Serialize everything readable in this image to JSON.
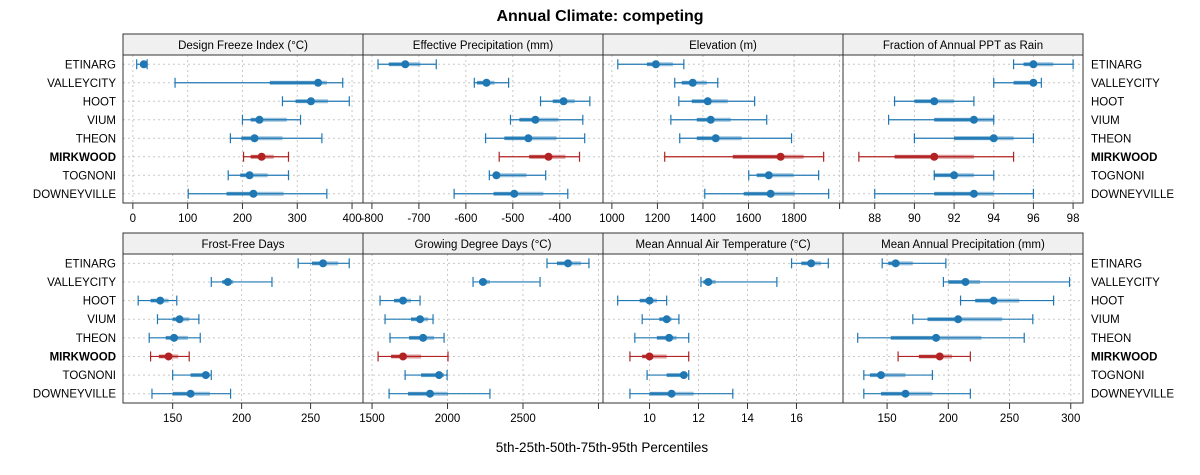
{
  "chart_data": {
    "type": "dot-interval",
    "title": "Annual Climate: competing",
    "xlabel": "5th-25th-50th-75th-95th Percentiles",
    "ylabel": "",
    "grid": true,
    "colors": {
      "default": "#1f78b4",
      "highlight": "#b22222",
      "strip_bg": "#f0f0f0",
      "grid": "#c8c8c8"
    },
    "categories": [
      "ETINARG",
      "VALLEYCITY",
      "HOOT",
      "VIUM",
      "THEON",
      "MIRKWOOD",
      "TOGNONI",
      "DOWNEYVILLE"
    ],
    "highlight_category": "MIRKWOOD",
    "quantiles": [
      "p5",
      "p25",
      "p50",
      "p75",
      "p95"
    ],
    "panels": [
      {
        "title": "Design Freeze Index (°C)",
        "xlim": [
          -18,
          420
        ],
        "ticks": [
          0,
          100,
          200,
          300,
          400
        ],
        "tick_labels": [
          "0",
          "100",
          "200",
          "300",
          "400"
        ],
        "values": {
          "ETINARG": [
            7,
            13,
            20,
            22,
            26
          ],
          "VALLEYCITY": [
            77,
            250,
            338,
            354,
            383
          ],
          "HOOT": [
            273,
            297,
            325,
            356,
            395
          ],
          "VIUM": [
            200,
            215,
            231,
            281,
            306
          ],
          "THEON": [
            178,
            198,
            222,
            273,
            345
          ],
          "MIRKWOOD": [
            202,
            215,
            235,
            257,
            284
          ],
          "TOGNONI": [
            174,
            196,
            213,
            246,
            284
          ],
          "DOWNEYVILLE": [
            101,
            171,
            220,
            275,
            354
          ]
        }
      },
      {
        "title": "Effective Precipitation (mm)",
        "xlim": [
          -819,
          -308
        ],
        "ticks": [
          -800,
          -700,
          -600,
          -500,
          -400
        ],
        "tick_labels": [
          "-800",
          "-700",
          "-600",
          "-500",
          "-400"
        ],
        "values": {
          "ETINARG": [
            -787,
            -764,
            -729,
            -697,
            -663
          ],
          "VALLEYCITY": [
            -582,
            -576,
            -556,
            -539,
            -509
          ],
          "HOOT": [
            -441,
            -415,
            -392,
            -368,
            -336
          ],
          "VIUM": [
            -505,
            -486,
            -452,
            -403,
            -351
          ],
          "THEON": [
            -558,
            -518,
            -467,
            -407,
            -347
          ],
          "MIRKWOOD": [
            -529,
            -465,
            -424,
            -388,
            -358
          ],
          "TOGNONI": [
            -550,
            -541,
            -535,
            -471,
            -430
          ],
          "DOWNEYVILLE": [
            -625,
            -541,
            -497,
            -435,
            -383
          ]
        }
      },
      {
        "title": "Elevation (m)",
        "xlim": [
          961,
          2015
        ],
        "ticks": [
          1000,
          1200,
          1400,
          1600,
          1800,
          2000
        ],
        "tick_labels": [
          "1000",
          "1200",
          "1400",
          "1600",
          "1800",
          ""
        ],
        "values": {
          "ETINARG": [
            1026,
            1154,
            1193,
            1268,
            1316
          ],
          "VALLEYCITY": [
            1276,
            1307,
            1355,
            1417,
            1465
          ],
          "HOOT": [
            1294,
            1351,
            1421,
            1509,
            1627
          ],
          "VIUM": [
            1259,
            1373,
            1434,
            1522,
            1680
          ],
          "THEON": [
            1298,
            1373,
            1456,
            1570,
            1789
          ],
          "MIRKWOOD": [
            1232,
            1531,
            1741,
            1842,
            1930
          ],
          "TOGNONI": [
            1601,
            1636,
            1689,
            1798,
            1908
          ],
          "DOWNEYVILLE": [
            1408,
            1579,
            1697,
            1803,
            1952
          ]
        }
      },
      {
        "title": "Fraction of Annual PPT as Rain",
        "xlim": [
          86.4,
          98.5
        ],
        "ticks": [
          88,
          90,
          92,
          94,
          96,
          98
        ],
        "tick_labels": [
          "88",
          "90",
          "92",
          "94",
          "96",
          "98"
        ],
        "values": {
          "ETINARG": [
            95,
            95.5,
            96,
            97,
            98
          ],
          "VALLEYCITY": [
            94,
            95,
            96,
            96,
            96.4
          ],
          "HOOT": [
            89,
            90,
            91,
            92,
            93
          ],
          "VIUM": [
            88.7,
            91,
            93,
            94,
            94
          ],
          "THEON": [
            90,
            92,
            94,
            95,
            96
          ],
          "MIRKWOOD": [
            87.2,
            89,
            91,
            93,
            95
          ],
          "TOGNONI": [
            91,
            91,
            92,
            93,
            94
          ],
          "DOWNEYVILLE": [
            88,
            91,
            93,
            94,
            96
          ]
        }
      },
      {
        "title": "Frost-Free Days",
        "xlim": [
          114,
          288
        ],
        "ticks": [
          150,
          200,
          250
        ],
        "tick_labels": [
          "150",
          "200",
          "250"
        ],
        "values": {
          "ETINARG": [
            241,
            251,
            259,
            270,
            278
          ],
          "VALLEYCITY": [
            178,
            186,
            190,
            194,
            222
          ],
          "HOOT": [
            125,
            134,
            141,
            147,
            153
          ],
          "VIUM": [
            139,
            150,
            155,
            162,
            169
          ],
          "THEON": [
            133,
            145,
            151,
            161,
            170
          ],
          "MIRKWOOD": [
            134,
            140,
            147,
            154,
            162
          ],
          "TOGNONI": [
            150,
            163,
            174,
            177,
            178
          ],
          "DOWNEYVILLE": [
            135,
            150,
            163,
            177,
            192
          ]
        }
      },
      {
        "title": "Growing Degree Days (°C)",
        "xlim": [
          1440,
          3030
        ],
        "ticks": [
          1500,
          2000,
          2500,
          3000
        ],
        "tick_labels": [
          "1500",
          "2000",
          "2500",
          ""
        ],
        "values": {
          "ETINARG": [
            2659,
            2725,
            2798,
            2884,
            2937
          ],
          "VALLEYCITY": [
            2169,
            2209,
            2235,
            2281,
            2613
          ],
          "HOOT": [
            1553,
            1646,
            1705,
            1758,
            1818
          ],
          "VIUM": [
            1586,
            1758,
            1818,
            1871,
            1904
          ],
          "THEON": [
            1619,
            1745,
            1838,
            1911,
            1977
          ],
          "MIRKWOOD": [
            1540,
            1626,
            1705,
            1825,
            2003
          ],
          "TOGNONI": [
            1719,
            1825,
            1944,
            1977,
            1997
          ],
          "DOWNEYVILLE": [
            1613,
            1738,
            1884,
            2003,
            2281
          ]
        }
      },
      {
        "title": "Mean Annual Air Temperature (°C)",
        "xlim": [
          8.1,
          17.9
        ],
        "ticks": [
          10,
          12,
          14,
          16
        ],
        "tick_labels": [
          "10",
          "12",
          "14",
          "16"
        ],
        "values": {
          "ETINARG": [
            15.8,
            16.2,
            16.6,
            17.0,
            17.3
          ],
          "VALLEYCITY": [
            12.1,
            12.2,
            12.4,
            12.7,
            15.2
          ],
          "HOOT": [
            8.7,
            9.6,
            10.0,
            10.3,
            10.7
          ],
          "VIUM": [
            9.7,
            10.4,
            10.7,
            10.9,
            11.2
          ],
          "THEON": [
            9.4,
            10.3,
            10.8,
            11.1,
            11.6
          ],
          "MIRKWOOD": [
            9.2,
            9.7,
            10.0,
            10.7,
            11.6
          ],
          "TOGNONI": [
            9.9,
            10.7,
            11.4,
            11.5,
            11.6
          ],
          "DOWNEYVILLE": [
            9.2,
            10.0,
            10.9,
            11.8,
            13.4
          ]
        }
      },
      {
        "title": "Mean Annual Precipitation (mm)",
        "xlim": [
          114,
          310
        ],
        "ticks": [
          150,
          200,
          250,
          300
        ],
        "tick_labels": [
          "150",
          "200",
          "250",
          "300"
        ],
        "values": {
          "ETINARG": [
            146,
            151,
            157,
            171,
            198
          ],
          "VALLEYCITY": [
            196,
            200,
            214,
            226,
            299
          ],
          "HOOT": [
            210,
            222,
            237,
            258,
            286
          ],
          "VIUM": [
            171,
            183,
            208,
            244,
            269
          ],
          "THEON": [
            126,
            153,
            190,
            227,
            262
          ],
          "MIRKWOOD": [
            159,
            176,
            193,
            203,
            218
          ],
          "TOGNONI": [
            131,
            136,
            145,
            165,
            187
          ],
          "DOWNEYVILLE": [
            131,
            145,
            165,
            187,
            218
          ]
        }
      }
    ]
  }
}
